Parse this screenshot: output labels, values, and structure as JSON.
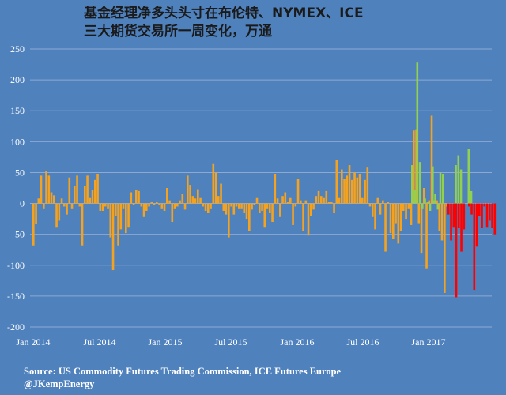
{
  "chart_data": {
    "type": "bar",
    "title_lines": [
      "基金经理净多头头寸在布伦特、NYMEX、ICE",
      "三大期货交易所一周变化，万通"
    ],
    "source_lines": [
      "Source: US Commodity Futures Trading Commission, ICE Futures Europe",
      "@JKempEnergy"
    ],
    "ylim": [
      -200,
      250
    ],
    "yticks": [
      -200,
      -150,
      -100,
      -50,
      0,
      50,
      100,
      150,
      200,
      250
    ],
    "xticks": [
      "Jan 2014",
      "Jul 2014",
      "Jan 2015",
      "Jul 2015",
      "Jan 2016",
      "Jul 2016",
      "Jan 2017"
    ],
    "grid": true,
    "colors": {
      "background": "#4f81bd",
      "grid": "#8eaad2",
      "orange": "#f5a31f",
      "green": "#92d050",
      "red": "#ff0000"
    },
    "series": [
      {
        "color": "orange",
        "values": [
          -68,
          -33,
          8,
          45,
          -8,
          52,
          45,
          18,
          13,
          -38,
          -28,
          8,
          -5,
          -18,
          42,
          -8,
          28,
          45,
          -5,
          -68,
          28,
          45,
          10,
          22,
          38,
          48,
          -12,
          -12,
          -5,
          -8,
          -55,
          -108,
          -20,
          -68,
          -42,
          -8,
          -48,
          -38,
          18,
          -2,
          22,
          20,
          -5,
          -22,
          -12,
          -5,
          2,
          -2,
          2,
          -3,
          -8,
          -12,
          25,
          5,
          -30,
          -8,
          -5,
          5,
          15,
          -10,
          45,
          30,
          12,
          8,
          23,
          10,
          -5,
          -12,
          -15,
          -8,
          65,
          50,
          12,
          32,
          -12,
          -18,
          -55,
          -5,
          -18,
          -5,
          -8,
          -8,
          -15,
          -25,
          -45,
          -10,
          -2,
          10,
          -15,
          -12,
          -38,
          -8,
          -15,
          -30,
          48,
          8,
          -22,
          12,
          18,
          2,
          10,
          -35,
          -5,
          40,
          5,
          -45,
          5,
          -52,
          -20,
          -10,
          12,
          20,
          12,
          10,
          20,
          2,
          2,
          -15,
          70,
          10,
          55,
          40,
          45,
          62,
          38,
          50,
          42,
          48,
          10,
          38,
          58,
          -5,
          -22,
          -42,
          10,
          -18,
          5,
          -78,
          2,
          -48,
          -58,
          -32,
          -65,
          -45,
          -12,
          -25,
          -8,
          -35,
          118,
          120,
          -32,
          -80,
          25,
          -105,
          5,
          142,
          5,
          5,
          -45,
          -60,
          -145,
          -5
        ]
      },
      {
        "color": "green",
        "values": [
          62,
          22,
          228,
          67,
          -8,
          8,
          2,
          -12,
          60,
          15,
          -10,
          50,
          48,
          0,
          0,
          0,
          0,
          62,
          78,
          55,
          0,
          0,
          88,
          20
        ]
      },
      {
        "color": "red",
        "values": [
          -18,
          -60,
          -38,
          -152,
          -40,
          -78,
          -42,
          0,
          -5,
          -18,
          -140,
          -70,
          -20,
          -40,
          -5,
          -38,
          -28,
          -40,
          -50
        ]
      }
    ]
  }
}
